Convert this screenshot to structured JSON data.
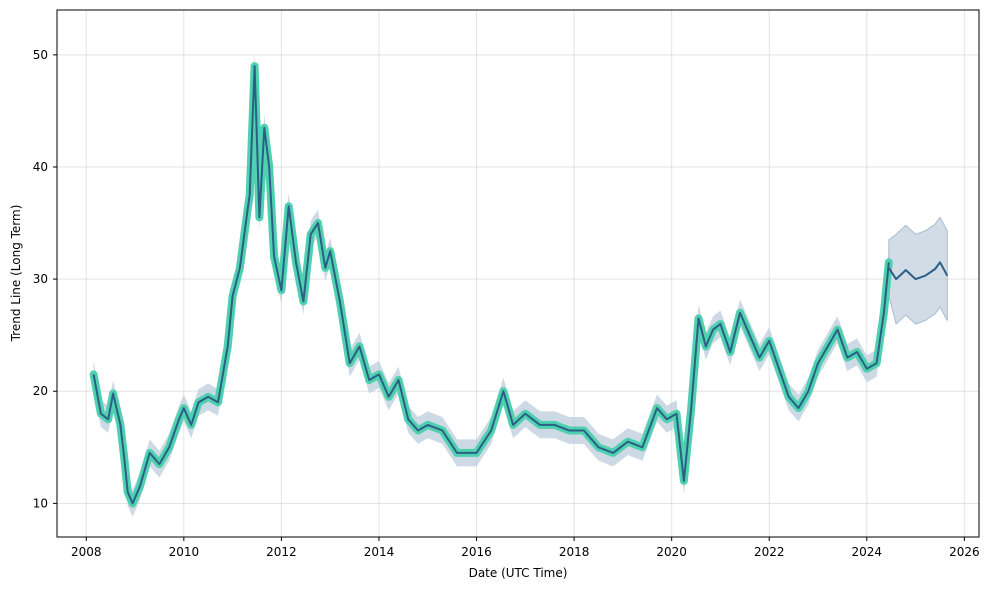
{
  "chart_data": {
    "type": "line",
    "title": "",
    "xlabel": "Date (UTC Time)",
    "ylabel": "Trend Line (Long Term)",
    "xlim": [
      2007.4,
      2026.3
    ],
    "ylim": [
      7,
      54
    ],
    "xticks": [
      "2008",
      "2010",
      "2012",
      "2014",
      "2016",
      "2018",
      "2020",
      "2022",
      "2024",
      "2026"
    ],
    "yticks": [
      "10",
      "20",
      "30",
      "40",
      "50"
    ],
    "grid": true,
    "legend": "none",
    "colors": {
      "history_highlight": "#4fd1b0",
      "trend_line": "#2a5f86",
      "confidence_band": "#b8c9d9"
    },
    "series": [
      {
        "role": "historical",
        "x": [
          2008.15,
          2008.3,
          2008.45,
          2008.55,
          2008.7,
          2008.78,
          2008.85,
          2008.95,
          2009.1,
          2009.3,
          2009.5,
          2009.7,
          2009.9,
          2010.0,
          2010.15,
          2010.3,
          2010.5,
          2010.7,
          2010.9,
          2011.0,
          2011.15,
          2011.3,
          2011.35,
          2011.45,
          2011.55,
          2011.65,
          2011.75,
          2011.85,
          2012.0,
          2012.15,
          2012.3,
          2012.45,
          2012.6,
          2012.75,
          2012.9,
          2013.0,
          2013.2,
          2013.4,
          2013.6,
          2013.8,
          2014.0,
          2014.2,
          2014.4,
          2014.6,
          2014.8,
          2015.0,
          2015.3,
          2015.6,
          2015.9,
          2016.0,
          2016.3,
          2016.55,
          2016.75,
          2017.0,
          2017.3,
          2017.6,
          2017.9,
          2018.2,
          2018.5,
          2018.8,
          2019.1,
          2019.4,
          2019.7,
          2019.9,
          2020.1,
          2020.25,
          2020.4,
          2020.55,
          2020.7,
          2020.85,
          2021.0,
          2021.2,
          2021.4,
          2021.6,
          2021.8,
          2022.0,
          2022.2,
          2022.4,
          2022.6,
          2022.8,
          2023.0,
          2023.2,
          2023.4,
          2023.6,
          2023.8,
          2024.0,
          2024.2,
          2024.35,
          2024.45
        ],
        "y": [
          21.5,
          18.0,
          17.5,
          19.8,
          17.0,
          14.0,
          11.0,
          10.0,
          11.5,
          14.5,
          13.5,
          15.0,
          17.5,
          18.5,
          17.0,
          19.0,
          19.5,
          19.0,
          24.0,
          28.5,
          31.0,
          36.0,
          37.5,
          49.0,
          35.5,
          43.5,
          40.0,
          32.0,
          29.0,
          36.5,
          31.5,
          28.0,
          34.0,
          35.0,
          31.0,
          32.5,
          28.0,
          22.5,
          24.0,
          21.0,
          21.5,
          19.5,
          21.0,
          17.5,
          16.5,
          17.0,
          16.5,
          14.5,
          14.5,
          14.5,
          16.5,
          20.0,
          17.0,
          18.0,
          17.0,
          17.0,
          16.5,
          16.5,
          15.0,
          14.5,
          15.5,
          15.0,
          18.5,
          17.5,
          18.0,
          12.0,
          18.5,
          26.5,
          24.0,
          25.5,
          26.0,
          23.5,
          27.0,
          25.0,
          23.0,
          24.5,
          22.0,
          19.5,
          18.5,
          20.0,
          22.5,
          24.0,
          25.5,
          23.0,
          23.5,
          22.0,
          22.5,
          27.0,
          31.5
        ]
      },
      {
        "role": "forecast",
        "x": [
          2024.45,
          2024.6,
          2024.8,
          2025.0,
          2025.2,
          2025.4,
          2025.5,
          2025.65
        ],
        "y": [
          31.0,
          30.0,
          30.8,
          30.0,
          30.3,
          30.9,
          31.5,
          30.3
        ],
        "upper": [
          33.5,
          34.0,
          34.8,
          34.0,
          34.3,
          34.9,
          35.5,
          34.3
        ],
        "lower": [
          28.5,
          26.0,
          26.8,
          26.0,
          26.3,
          26.9,
          27.5,
          26.3
        ]
      }
    ]
  }
}
